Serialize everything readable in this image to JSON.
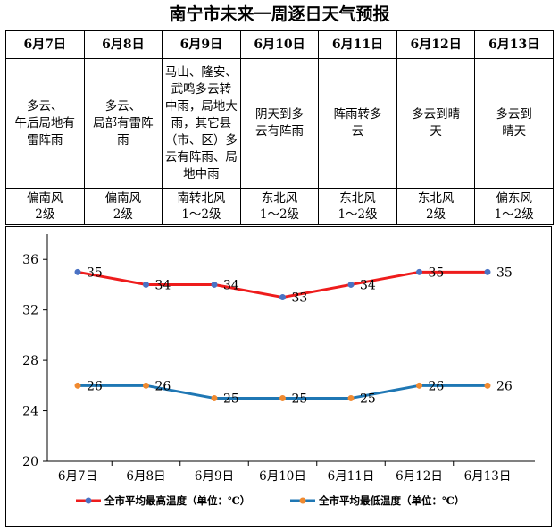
{
  "title": "南宁市未来一周逐日天气预报",
  "days": [
    {
      "date": "6月7日",
      "weather": [
        "多云、",
        "午后局地有",
        "雷阵雨"
      ],
      "wind": "偏南风",
      "level": "2级"
    },
    {
      "date": "6月8日",
      "weather": [
        "多云、",
        "局部有雷阵",
        "雨"
      ],
      "wind": "偏南风",
      "level": "2级"
    },
    {
      "date": "6月9日",
      "weather": [
        "马山、隆安、",
        "武鸣多云转",
        "中雨，局地大",
        "雨，其它县",
        "（市、区）多",
        "云有阵雨、局",
        "地中雨"
      ],
      "wind": "南转北风",
      "level": "1～2级"
    },
    {
      "date": "6月10日",
      "weather": [
        "阴天到多",
        "云有阵雨"
      ],
      "wind": "东北风",
      "level": "1～2级"
    },
    {
      "date": "6月11日",
      "weather": [
        "阵雨转多",
        "云"
      ],
      "wind": "东北风",
      "level": "1～2级"
    },
    {
      "date": "6月12日",
      "weather": [
        "多云到晴",
        "天"
      ],
      "wind": "东北风",
      "level": "2级"
    },
    {
      "date": "6月13日",
      "weather": [
        "多云到",
        "晴天"
      ],
      "wind": "偏东风",
      "level": "1～2级"
    }
  ],
  "colors": {
    "high": "#ee1c1c",
    "high_marker": "#4a72c4",
    "low": "#1f77b4",
    "low_marker": "#f08a30"
  },
  "chart_data": {
    "type": "line",
    "categories": [
      "6月7日",
      "6月8日",
      "6月9日",
      "6月10日",
      "6月11日",
      "6月12日",
      "6月13日"
    ],
    "series": [
      {
        "name": "全市平均最高温度（单位：℃）",
        "values": [
          35,
          34,
          34,
          33,
          34,
          35,
          35
        ]
      },
      {
        "name": "全市平均最低温度（单位：℃）",
        "values": [
          26,
          26,
          25,
          25,
          25,
          26,
          26
        ]
      }
    ],
    "yticks": [
      20,
      24,
      28,
      32,
      36
    ],
    "ylim": [
      20,
      38
    ],
    "grid": false,
    "legend": "bottom"
  }
}
